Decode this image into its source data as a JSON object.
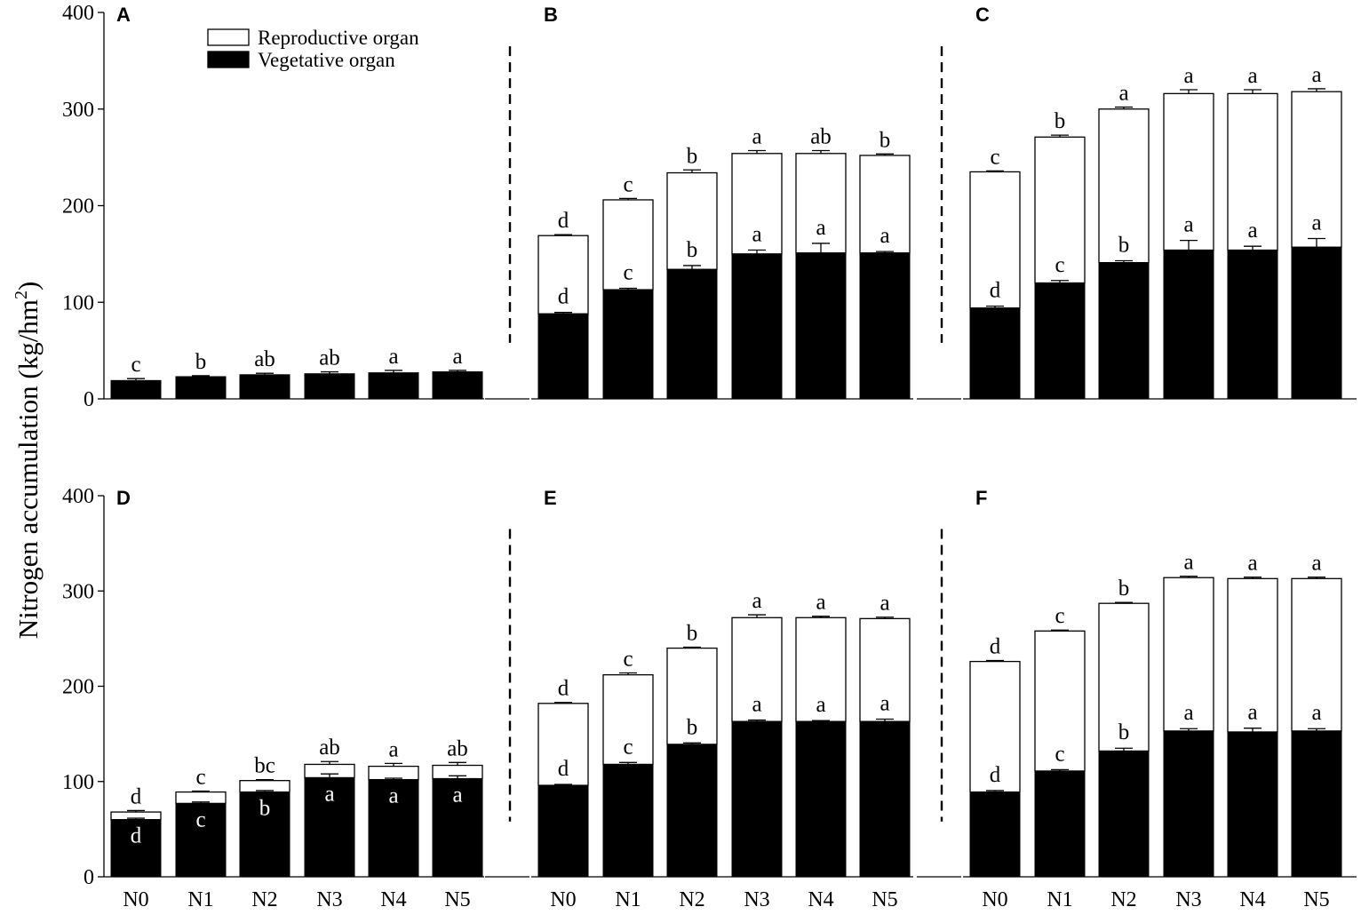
{
  "chart_data": {
    "type": "bar",
    "stacked": true,
    "ylabel": "Nitrogen accumulation (kg/hm",
    "ylabel_sup": "2",
    "ylabel_close": ")",
    "ylim": [
      0,
      400
    ],
    "yticks": [
      0,
      100,
      200,
      300,
      400
    ],
    "categories": [
      "N0",
      "N1",
      "N2",
      "N3",
      "N4",
      "N5"
    ],
    "legend": {
      "position": "top-left of panel A",
      "entries": [
        {
          "name": "Reproductive organ",
          "color": "#ffffff"
        },
        {
          "name": "Vegetative organ",
          "color": "#000000"
        }
      ]
    },
    "panels": [
      {
        "label": "A",
        "vegetative": [
          19,
          23,
          25,
          26,
          27,
          28
        ],
        "reproductive": [
          0,
          0,
          0,
          0,
          0,
          0
        ],
        "veg_err": [
          2,
          1,
          1.5,
          2,
          2.5,
          1.5
        ],
        "total_err": [
          2,
          1,
          1.5,
          2,
          2.5,
          1.5
        ],
        "veg_letters": [
          "",
          "",
          "",
          "",
          "",
          ""
        ],
        "total_letters": [
          "c",
          "b",
          "ab",
          "ab",
          "a",
          "a"
        ]
      },
      {
        "label": "B",
        "vegetative": [
          88,
          113,
          134,
          150,
          151,
          151
        ],
        "reproductive": [
          81,
          93,
          100,
          104,
          103,
          101
        ],
        "veg_err": [
          1.5,
          1.5,
          4,
          4,
          10,
          1.5
        ],
        "total_err": [
          1,
          1.5,
          3,
          3,
          3,
          1.5
        ],
        "veg_letters": [
          "d",
          "c",
          "b",
          "a",
          "a",
          "a"
        ],
        "total_letters": [
          "d",
          "c",
          "b",
          "a",
          "ab",
          "b"
        ]
      },
      {
        "label": "C",
        "vegetative": [
          94,
          120,
          141,
          154,
          154,
          157
        ],
        "reproductive": [
          141,
          151,
          159,
          162,
          162,
          161
        ],
        "veg_err": [
          2,
          2.5,
          2,
          10,
          4,
          9
        ],
        "total_err": [
          1,
          2,
          2,
          4,
          4,
          3
        ],
        "veg_letters": [
          "d",
          "c",
          "b",
          "a",
          "a",
          "a"
        ],
        "total_letters": [
          "c",
          "b",
          "a",
          "a",
          "a",
          "a"
        ]
      },
      {
        "label": "D",
        "vegetative": [
          60,
          77,
          89,
          104,
          102,
          103
        ],
        "reproductive": [
          8,
          12,
          12,
          14,
          14,
          14
        ],
        "veg_err": [
          1.5,
          1.5,
          1.5,
          4,
          1.5,
          3
        ],
        "total_err": [
          1.5,
          1,
          1,
          3,
          3,
          3
        ],
        "veg_letters": [
          "d",
          "c",
          "b",
          "a",
          "a",
          "a"
        ],
        "total_letters": [
          "d",
          "c",
          "bc",
          "ab",
          "a",
          "ab"
        ]
      },
      {
        "label": "E",
        "vegetative": [
          96,
          118,
          139,
          163,
          163,
          163
        ],
        "reproductive": [
          86,
          94,
          101,
          109,
          109,
          108
        ],
        "veg_err": [
          1,
          2,
          1.5,
          1.5,
          1,
          2.5
        ],
        "total_err": [
          1,
          2,
          1,
          3,
          1.5,
          1.5
        ],
        "veg_letters": [
          "d",
          "c",
          "b",
          "a",
          "a",
          "a"
        ],
        "total_letters": [
          "d",
          "c",
          "b",
          "a",
          "a",
          "a"
        ]
      },
      {
        "label": "F",
        "vegetative": [
          89,
          111,
          132,
          153,
          152,
          153
        ],
        "reproductive": [
          137,
          147,
          155,
          161,
          161,
          160
        ],
        "veg_err": [
          1.5,
          1.5,
          3,
          2.5,
          4,
          2.5
        ],
        "total_err": [
          1,
          1,
          1,
          1.5,
          1.5,
          1.5
        ],
        "veg_letters": [
          "d",
          "c",
          "b",
          "a",
          "a",
          "a"
        ],
        "total_letters": [
          "d",
          "c",
          "b",
          "a",
          "a",
          "a"
        ]
      }
    ]
  }
}
